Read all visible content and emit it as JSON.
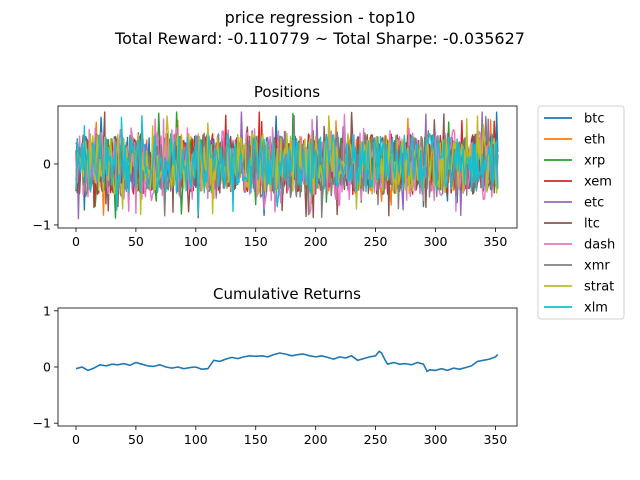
{
  "figure": {
    "title_line1": "price regression - top10",
    "title_line2": "Total Reward: -0.110779 ~ Total Sharpe: -0.035627"
  },
  "colors": {
    "btc": "#1f77b4",
    "eth": "#ff7f0e",
    "xrp": "#2ca02c",
    "xem": "#d62728",
    "etc": "#9467bd",
    "ltc": "#8c564b",
    "dash": "#e377c2",
    "xmr": "#7f7f7f",
    "strat": "#bcbd22",
    "xlm": "#17becf"
  },
  "chart_data": [
    {
      "type": "line",
      "title": "Positions",
      "xlim": [
        -15,
        368
      ],
      "ylim": [
        -1.05,
        0.95
      ],
      "xticks": [
        0,
        50,
        100,
        150,
        200,
        250,
        300,
        350
      ],
      "yticks": [
        -1,
        0
      ],
      "x_range": [
        0,
        352
      ],
      "series_note_values_approx": "Random-looking positions per asset, mostly within [-0.5, 0.5] with occasional spikes to about -0.95 and 0.85",
      "series": [
        {
          "name": "btc",
          "key": "btc",
          "amp": 0.45,
          "seed": 1
        },
        {
          "name": "eth",
          "key": "eth",
          "amp": 0.45,
          "seed": 2
        },
        {
          "name": "xrp",
          "key": "xrp",
          "amp": 0.45,
          "seed": 3
        },
        {
          "name": "xem",
          "key": "xem",
          "amp": 0.5,
          "seed": 4
        },
        {
          "name": "etc",
          "key": "etc",
          "amp": 0.45,
          "seed": 5
        },
        {
          "name": "ltc",
          "key": "ltc",
          "amp": 0.5,
          "seed": 6
        },
        {
          "name": "dash",
          "key": "dash",
          "amp": 0.6,
          "seed": 7
        },
        {
          "name": "xmr",
          "key": "xmr",
          "amp": 0.55,
          "seed": 8
        },
        {
          "name": "strat",
          "key": "strat",
          "amp": 0.5,
          "seed": 9
        },
        {
          "name": "xlm",
          "key": "xlm",
          "amp": 0.5,
          "seed": 10
        }
      ]
    },
    {
      "type": "line",
      "title": "Cumulative Returns",
      "xlim": [
        -15,
        368
      ],
      "ylim": [
        -1.05,
        1.05
      ],
      "xticks": [
        0,
        50,
        100,
        150,
        200,
        250,
        300,
        350
      ],
      "yticks": [
        -1,
        0,
        1
      ],
      "series": [
        {
          "name": "cumulative",
          "color": "#1f77b4",
          "x": [
            0,
            5,
            10,
            15,
            20,
            25,
            30,
            35,
            40,
            45,
            50,
            55,
            60,
            65,
            70,
            75,
            80,
            85,
            90,
            95,
            100,
            105,
            110,
            115,
            120,
            125,
            130,
            135,
            140,
            145,
            150,
            155,
            160,
            165,
            170,
            175,
            180,
            185,
            190,
            195,
            200,
            205,
            210,
            215,
            220,
            225,
            230,
            235,
            240,
            245,
            250,
            253,
            255,
            258,
            260,
            265,
            270,
            275,
            280,
            285,
            290,
            293,
            295,
            300,
            305,
            310,
            315,
            320,
            325,
            330,
            335,
            340,
            345,
            350,
            352
          ],
          "y": [
            -0.03,
            0.0,
            -0.06,
            -0.02,
            0.04,
            0.02,
            0.05,
            0.04,
            0.06,
            0.03,
            0.08,
            0.05,
            0.02,
            0.01,
            0.04,
            0.0,
            -0.02,
            0.0,
            -0.03,
            -0.01,
            0.0,
            -0.04,
            -0.03,
            0.12,
            0.1,
            0.14,
            0.17,
            0.15,
            0.18,
            0.2,
            0.19,
            0.2,
            0.18,
            0.22,
            0.25,
            0.23,
            0.2,
            0.22,
            0.23,
            0.2,
            0.18,
            0.2,
            0.17,
            0.14,
            0.18,
            0.16,
            0.2,
            0.12,
            0.15,
            0.18,
            0.2,
            0.28,
            0.25,
            0.12,
            0.05,
            0.08,
            0.05,
            0.06,
            0.04,
            0.08,
            0.05,
            -0.08,
            -0.05,
            -0.06,
            -0.03,
            -0.06,
            -0.02,
            -0.04,
            -0.01,
            0.02,
            0.1,
            0.12,
            0.14,
            0.18,
            0.22
          ]
        }
      ]
    }
  ],
  "legend": {
    "placement": "outside-right",
    "entries": [
      "btc",
      "eth",
      "xrp",
      "xem",
      "etc",
      "ltc",
      "dash",
      "xmr",
      "strat",
      "xlm"
    ]
  }
}
